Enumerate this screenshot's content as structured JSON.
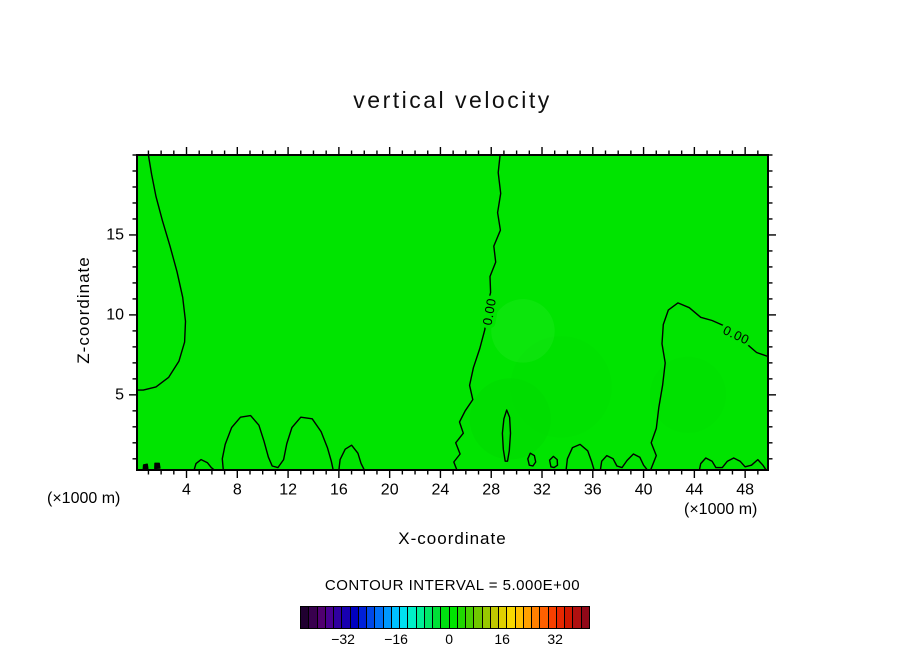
{
  "chart_data": {
    "type": "contour",
    "title": "vertical velocity",
    "xlabel": "X-coordinate",
    "ylabel": "Z-coordinate",
    "unit_left": "(×1000 m)",
    "unit_right": "(×1000 m)",
    "contour_interval_label": "CONTOUR INTERVAL = 5.000E+00",
    "contour_interval": 5.0,
    "contour_level_shown": "0.00",
    "xlim": [
      0.1,
      49.8
    ],
    "ylim": [
      0.3,
      20.0
    ],
    "x_major_ticks": [
      4,
      8,
      12,
      16,
      20,
      24,
      28,
      32,
      36,
      40,
      44,
      48
    ],
    "x_tick_labels": [
      "4",
      "8",
      "12",
      "16",
      "20",
      "24",
      "28",
      "32",
      "36",
      "40",
      "44",
      "48"
    ],
    "y_major_ticks": [
      5,
      10,
      15
    ],
    "y_tick_labels": [
      "5",
      "10",
      "15"
    ],
    "minor_tick_step": 1,
    "field_color": "#00e400",
    "contour_color": "#000000",
    "contours": [
      {
        "closed": false,
        "fill": false,
        "points": [
          [
            1.0,
            20.0
          ],
          [
            1.25,
            18.8
          ],
          [
            1.6,
            17.4
          ],
          [
            2.1,
            15.9
          ],
          [
            2.7,
            14.3
          ],
          [
            3.25,
            12.7
          ],
          [
            3.7,
            11.1
          ],
          [
            3.92,
            9.6
          ],
          [
            3.85,
            8.3
          ],
          [
            3.4,
            7.1
          ],
          [
            2.6,
            6.1
          ],
          [
            1.6,
            5.5
          ],
          [
            0.6,
            5.3
          ],
          [
            0.1,
            5.3
          ]
        ]
      },
      {
        "closed": false,
        "fill": false,
        "points": [
          [
            28.7,
            20.0
          ],
          [
            28.55,
            18.9
          ],
          [
            28.75,
            17.6
          ],
          [
            28.5,
            16.4
          ],
          [
            28.72,
            15.3
          ],
          [
            28.2,
            14.3
          ],
          [
            28.35,
            13.3
          ],
          [
            27.9,
            12.4
          ],
          [
            27.95,
            11.4
          ],
          [
            27.6,
            10.3
          ],
          [
            27.5,
            9.1
          ],
          [
            27.1,
            7.9
          ],
          [
            26.6,
            6.7
          ],
          [
            26.3,
            5.6
          ],
          [
            26.55,
            4.7
          ],
          [
            25.95,
            4.0
          ],
          [
            25.5,
            3.3
          ],
          [
            25.8,
            2.6
          ],
          [
            25.2,
            2.0
          ],
          [
            25.55,
            1.3
          ],
          [
            25.05,
            0.8
          ],
          [
            25.3,
            0.3
          ]
        ]
      },
      {
        "closed": false,
        "fill": false,
        "points": [
          [
            49.8,
            7.4
          ],
          [
            48.9,
            7.65
          ],
          [
            48.1,
            8.2
          ],
          [
            47.3,
            8.8
          ],
          [
            46.4,
            9.3
          ],
          [
            45.4,
            9.65
          ],
          [
            44.5,
            9.85
          ],
          [
            43.6,
            10.45
          ],
          [
            42.7,
            10.75
          ],
          [
            41.95,
            10.3
          ],
          [
            41.55,
            9.4
          ],
          [
            41.45,
            8.2
          ],
          [
            41.7,
            7.0
          ],
          [
            41.5,
            5.6
          ],
          [
            41.2,
            4.2
          ],
          [
            41.0,
            2.9
          ],
          [
            40.6,
            2.0
          ],
          [
            41.0,
            1.2
          ],
          [
            40.55,
            0.3
          ]
        ]
      },
      {
        "closed": false,
        "fill": false,
        "points": [
          [
            6.9,
            0.3
          ],
          [
            6.82,
            1.0
          ],
          [
            7.05,
            1.9
          ],
          [
            7.55,
            2.95
          ],
          [
            8.25,
            3.6
          ],
          [
            9.05,
            3.7
          ],
          [
            9.7,
            3.1
          ],
          [
            10.1,
            2.1
          ],
          [
            10.45,
            1.1
          ],
          [
            10.75,
            0.55
          ],
          [
            11.2,
            0.45
          ],
          [
            11.65,
            0.95
          ],
          [
            11.9,
            1.95
          ],
          [
            12.3,
            2.95
          ],
          [
            13.0,
            3.6
          ],
          [
            13.9,
            3.5
          ],
          [
            14.6,
            2.7
          ],
          [
            15.1,
            1.7
          ],
          [
            15.4,
            0.85
          ],
          [
            15.55,
            0.3
          ]
        ]
      },
      {
        "closed": false,
        "fill": false,
        "points": [
          [
            16.0,
            0.3
          ],
          [
            16.1,
            0.95
          ],
          [
            16.5,
            1.6
          ],
          [
            17.0,
            1.85
          ],
          [
            17.5,
            1.35
          ],
          [
            17.75,
            0.7
          ],
          [
            18.0,
            0.3
          ]
        ]
      },
      {
        "closed": true,
        "fill": false,
        "points": [
          [
            29.1,
            0.85
          ],
          [
            28.95,
            1.6
          ],
          [
            28.88,
            2.6
          ],
          [
            29.0,
            3.5
          ],
          [
            29.22,
            4.05
          ],
          [
            29.45,
            3.6
          ],
          [
            29.52,
            2.6
          ],
          [
            29.42,
            1.5
          ],
          [
            29.28,
            0.85
          ]
        ]
      },
      {
        "closed": true,
        "fill": false,
        "points": [
          [
            31.0,
            0.6
          ],
          [
            30.88,
            1.0
          ],
          [
            31.08,
            1.35
          ],
          [
            31.4,
            1.2
          ],
          [
            31.5,
            0.8
          ],
          [
            31.28,
            0.55
          ]
        ]
      },
      {
        "closed": true,
        "fill": false,
        "points": [
          [
            32.7,
            0.5
          ],
          [
            32.6,
            0.92
          ],
          [
            32.9,
            1.15
          ],
          [
            33.2,
            0.95
          ],
          [
            33.22,
            0.6
          ],
          [
            32.95,
            0.45
          ]
        ]
      },
      {
        "closed": false,
        "fill": false,
        "points": [
          [
            33.9,
            0.3
          ],
          [
            34.0,
            1.0
          ],
          [
            34.4,
            1.7
          ],
          [
            35.0,
            1.9
          ],
          [
            35.6,
            1.5
          ],
          [
            35.9,
            0.85
          ],
          [
            36.1,
            0.3
          ]
        ]
      },
      {
        "closed": false,
        "fill": false,
        "points": [
          [
            36.6,
            0.3
          ],
          [
            36.7,
            0.85
          ],
          [
            37.1,
            1.2
          ],
          [
            37.6,
            1.0
          ],
          [
            37.9,
            0.55
          ],
          [
            38.3,
            0.45
          ],
          [
            38.7,
            0.9
          ],
          [
            39.2,
            1.3
          ],
          [
            39.7,
            1.1
          ],
          [
            40.0,
            0.6
          ],
          [
            40.3,
            0.3
          ]
        ]
      },
      {
        "closed": false,
        "fill": false,
        "points": [
          [
            44.4,
            0.3
          ],
          [
            44.5,
            0.7
          ],
          [
            44.9,
            1.05
          ],
          [
            45.4,
            0.85
          ],
          [
            45.7,
            0.45
          ],
          [
            46.2,
            0.45
          ],
          [
            46.6,
            0.85
          ],
          [
            47.1,
            1.05
          ],
          [
            47.6,
            0.85
          ],
          [
            48.0,
            0.5
          ],
          [
            48.5,
            0.6
          ],
          [
            49.0,
            0.95
          ],
          [
            49.4,
            0.6
          ],
          [
            49.65,
            0.3
          ]
        ]
      },
      {
        "closed": true,
        "fill": true,
        "points": [
          [
            0.6,
            0.35
          ],
          [
            0.62,
            0.62
          ],
          [
            0.9,
            0.66
          ],
          [
            0.95,
            0.4
          ]
        ]
      },
      {
        "closed": true,
        "fill": true,
        "points": [
          [
            1.5,
            0.4
          ],
          [
            1.52,
            0.72
          ],
          [
            1.85,
            0.72
          ],
          [
            1.9,
            0.42
          ]
        ]
      },
      {
        "closed": false,
        "fill": false,
        "points": [
          [
            4.6,
            0.3
          ],
          [
            4.75,
            0.7
          ],
          [
            5.15,
            0.95
          ],
          [
            5.65,
            0.75
          ],
          [
            5.95,
            0.45
          ],
          [
            6.2,
            0.3
          ]
        ]
      }
    ],
    "contour_labels": [
      {
        "text": "0.00",
        "x": 27.85,
        "y": 10.2,
        "angle": -80
      },
      {
        "text": "0.00",
        "x": 47.3,
        "y": 8.75,
        "angle": 25
      }
    ],
    "shade_patches": [
      {
        "cx": 29.5,
        "cy": 3.5,
        "r": 3.2,
        "color": "#00d800",
        "opacity": 0.45
      },
      {
        "cx": 33.5,
        "cy": 5.5,
        "r": 4.0,
        "color": "#00dc00",
        "opacity": 0.35
      },
      {
        "cx": 43.5,
        "cy": 5.0,
        "r": 3.0,
        "color": "#00da00",
        "opacity": 0.3
      },
      {
        "cx": 30.5,
        "cy": 9.0,
        "r": 2.5,
        "color": "#30ea30",
        "opacity": 0.25
      }
    ],
    "colorbar": {
      "vmin": -45,
      "vmax": 42.5,
      "tick_values": [
        -32,
        -16,
        0,
        16,
        32
      ],
      "tick_labels": [
        "−32",
        "−16",
        "0",
        "16",
        "32"
      ],
      "cell_colors": [
        "#200030",
        "#38004e",
        "#500070",
        "#480090",
        "#3000a0",
        "#1800b0",
        "#0000c0",
        "#0020d8",
        "#0048e8",
        "#0070f8",
        "#0098ff",
        "#00c0ff",
        "#00e0f0",
        "#00f0c8",
        "#00f098",
        "#00e868",
        "#00e038",
        "#00e010",
        "#00e400",
        "#20d800",
        "#48d000",
        "#70c800",
        "#98c800",
        "#c0c800",
        "#e0d000",
        "#f8d800",
        "#ffc000",
        "#ffa000",
        "#ff8000",
        "#ff6000",
        "#f84000",
        "#e82800",
        "#d01800",
        "#b01010",
        "#900818"
      ]
    }
  }
}
